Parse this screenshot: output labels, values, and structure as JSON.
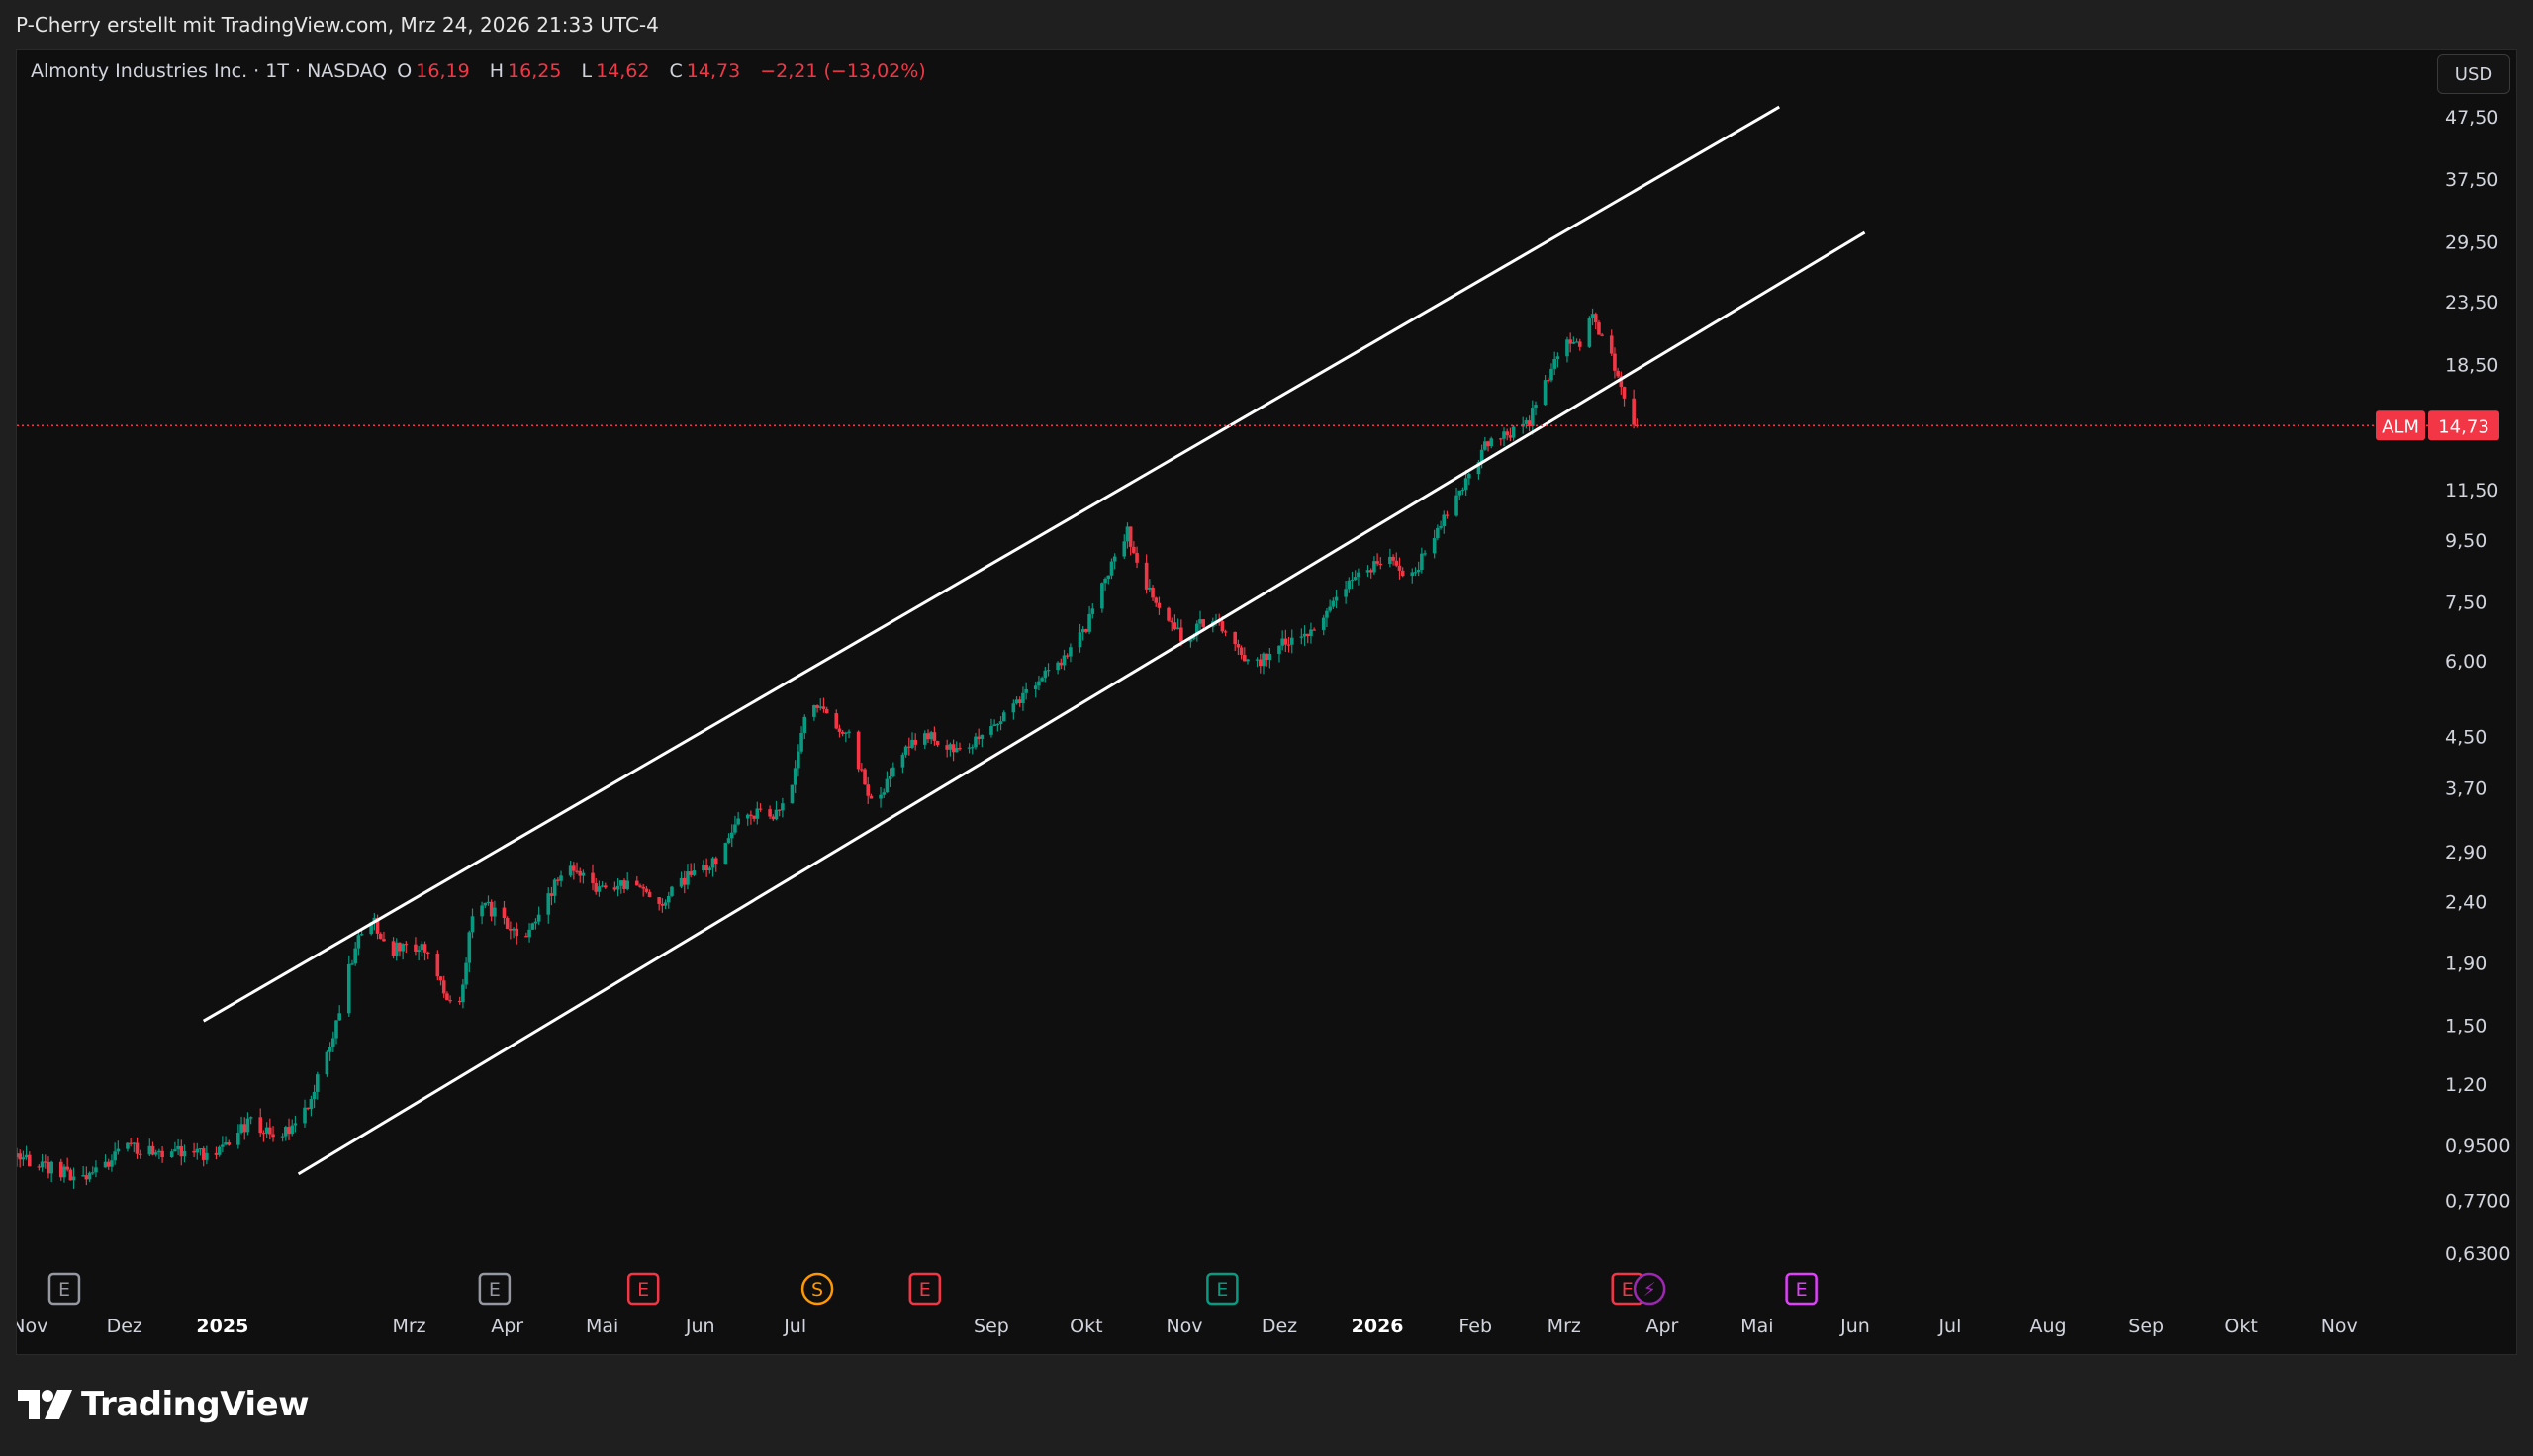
{
  "header": {
    "caption": "P-Cherry erstellt mit TradingView.com, Mrz 24, 2026 21:33 UTC-4"
  },
  "legend": {
    "symbol_name": "Almonty Industries Inc. · 1T · NASDAQ",
    "open_label": "O",
    "open": "16,19",
    "high_label": "H",
    "high": "16,25",
    "low_label": "L",
    "low": "14,62",
    "close_label": "C",
    "close": "14,73",
    "change": "−2,21 (−13,02%)"
  },
  "currency_button": "USD",
  "price_tag": {
    "ticker": "ALM",
    "price": "14,73"
  },
  "footer": {
    "brand": "TradingView"
  },
  "colors": {
    "up": "#089981",
    "down": "#f23645",
    "channel": "#ffffff",
    "background": "#0f0f0f"
  },
  "chart_data": {
    "type": "candlestick",
    "y_scale": "log",
    "ylim": [
      0.6,
      52
    ],
    "y_ticks": [
      "47,50",
      "37,50",
      "29,50",
      "23,50",
      "18,50",
      "11,50",
      "9,50",
      "7,50",
      "6,00",
      "4,50",
      "3,70",
      "2,90",
      "2,40",
      "1,90",
      "1,50",
      "1,20",
      "0,9500",
      "0,7700",
      "0,6300"
    ],
    "y_tick_values": [
      47.5,
      37.5,
      29.5,
      23.5,
      18.5,
      11.5,
      9.5,
      7.5,
      6.0,
      4.5,
      3.7,
      2.9,
      2.4,
      1.9,
      1.5,
      1.2,
      0.95,
      0.77,
      0.63
    ],
    "x_start": "2024-10-28",
    "x_end": "2026-11-30",
    "x_ticks": [
      {
        "date": "2024-11-01",
        "label": "Nov",
        "bold": false
      },
      {
        "date": "2024-12-01",
        "label": "Dez",
        "bold": false
      },
      {
        "date": "2025-01-01",
        "label": "2025",
        "bold": true
      },
      {
        "date": "2025-03-01",
        "label": "Mrz",
        "bold": false
      },
      {
        "date": "2025-04-01",
        "label": "Apr",
        "bold": false
      },
      {
        "date": "2025-05-01",
        "label": "Mai",
        "bold": false
      },
      {
        "date": "2025-06-01",
        "label": "Jun",
        "bold": false
      },
      {
        "date": "2025-07-01",
        "label": "Jul",
        "bold": false
      },
      {
        "date": "2025-09-01",
        "label": "Sep",
        "bold": false
      },
      {
        "date": "2025-10-01",
        "label": "Okt",
        "bold": false
      },
      {
        "date": "2025-11-01",
        "label": "Nov",
        "bold": false
      },
      {
        "date": "2025-12-01",
        "label": "Dez",
        "bold": false
      },
      {
        "date": "2026-01-01",
        "label": "2026",
        "bold": true
      },
      {
        "date": "2026-02-01",
        "label": "Feb",
        "bold": false
      },
      {
        "date": "2026-03-01",
        "label": "Mrz",
        "bold": false
      },
      {
        "date": "2026-04-01",
        "label": "Apr",
        "bold": false
      },
      {
        "date": "2026-05-01",
        "label": "Mai",
        "bold": false
      },
      {
        "date": "2026-06-01",
        "label": "Jun",
        "bold": false
      },
      {
        "date": "2026-07-01",
        "label": "Jul",
        "bold": false
      },
      {
        "date": "2026-08-01",
        "label": "Aug",
        "bold": false
      },
      {
        "date": "2026-09-01",
        "label": "Sep",
        "bold": false
      },
      {
        "date": "2026-10-01",
        "label": "Okt",
        "bold": false
      },
      {
        "date": "2026-11-01",
        "label": "Nov",
        "bold": false
      }
    ],
    "price_path": [
      [
        "2024-10-28",
        0.91
      ],
      [
        "2024-11-12",
        0.86
      ],
      [
        "2024-11-20",
        0.84
      ],
      [
        "2024-12-01",
        0.95
      ],
      [
        "2024-12-15",
        0.93
      ],
      [
        "2024-12-28",
        0.92
      ],
      [
        "2025-01-10",
        1.05
      ],
      [
        "2025-01-18",
        0.97
      ],
      [
        "2025-01-28",
        1.1
      ],
      [
        "2025-02-05",
        1.45
      ],
      [
        "2025-02-12",
        2.05
      ],
      [
        "2025-02-18",
        2.22
      ],
      [
        "2025-02-24",
        2.0
      ],
      [
        "2025-03-01",
        2.08
      ],
      [
        "2025-03-08",
        1.95
      ],
      [
        "2025-03-13",
        1.62
      ],
      [
        "2025-03-17",
        1.65
      ],
      [
        "2025-03-22",
        2.5
      ],
      [
        "2025-03-28",
        2.3
      ],
      [
        "2025-04-06",
        2.05
      ],
      [
        "2025-04-12",
        2.35
      ],
      [
        "2025-04-20",
        2.8
      ],
      [
        "2025-04-28",
        2.55
      ],
      [
        "2025-05-10",
        2.55
      ],
      [
        "2025-05-20",
        2.4
      ],
      [
        "2025-05-28",
        2.65
      ],
      [
        "2025-06-05",
        2.8
      ],
      [
        "2025-06-15",
        3.4
      ],
      [
        "2025-06-25",
        3.35
      ],
      [
        "2025-06-30",
        3.75
      ],
      [
        "2025-07-05",
        5.2
      ],
      [
        "2025-07-10",
        5.0
      ],
      [
        "2025-07-18",
        4.5
      ],
      [
        "2025-07-22",
        3.9
      ],
      [
        "2025-07-26",
        3.4
      ],
      [
        "2025-08-01",
        4.0
      ],
      [
        "2025-08-10",
        4.6
      ],
      [
        "2025-08-20",
        4.3
      ],
      [
        "2025-09-01",
        4.6
      ],
      [
        "2025-09-10",
        5.2
      ],
      [
        "2025-09-20",
        5.8
      ],
      [
        "2025-10-01",
        6.8
      ],
      [
        "2025-10-08",
        8.5
      ],
      [
        "2025-10-14",
        9.9
      ],
      [
        "2025-10-18",
        8.4
      ],
      [
        "2025-10-24",
        7.2
      ],
      [
        "2025-11-01",
        6.5
      ],
      [
        "2025-11-08",
        7.1
      ],
      [
        "2025-11-15",
        6.7
      ],
      [
        "2025-11-22",
        5.8
      ],
      [
        "2025-12-01",
        6.4
      ],
      [
        "2025-12-10",
        6.6
      ],
      [
        "2025-12-18",
        7.6
      ],
      [
        "2025-12-26",
        8.5
      ],
      [
        "2026-01-05",
        8.8
      ],
      [
        "2026-01-12",
        8.3
      ],
      [
        "2026-01-20",
        9.8
      ],
      [
        "2026-01-28",
        11.8
      ],
      [
        "2026-02-05",
        13.8
      ],
      [
        "2026-02-12",
        14.2
      ],
      [
        "2026-02-18",
        15.0
      ],
      [
        "2026-02-25",
        18.5
      ],
      [
        "2026-03-02",
        20.5
      ],
      [
        "2026-03-06",
        19.8
      ],
      [
        "2026-03-10",
        22.3
      ],
      [
        "2026-03-16",
        19.0
      ],
      [
        "2026-03-20",
        16.4
      ],
      [
        "2026-03-24",
        14.73
      ]
    ],
    "last_price": 14.73,
    "channel_lines": [
      {
        "start": [
          "2024-12-26",
          1.53
        ],
        "end": [
          "2026-05-08",
          49.5
        ]
      },
      {
        "start": [
          "2025-01-25",
          0.855
        ],
        "end": [
          "2026-06-04",
          30.7
        ]
      }
    ],
    "event_markers": [
      {
        "date": "2024-11-12",
        "label": "E",
        "color": "#9598a1"
      },
      {
        "date": "2025-03-28",
        "label": "E",
        "color": "#9598a1"
      },
      {
        "date": "2025-05-14",
        "label": "E",
        "color": "#f23645"
      },
      {
        "date": "2025-07-08",
        "label": "S",
        "color": "#ff9800",
        "shape": "circle"
      },
      {
        "date": "2025-08-11",
        "label": "E",
        "color": "#f23645"
      },
      {
        "date": "2025-11-13",
        "label": "E",
        "color": "#089981"
      },
      {
        "date": "2026-03-21",
        "label": "E",
        "color": "#f23645"
      },
      {
        "date": "2026-03-28",
        "label": "⚡",
        "color": "#9c27b0",
        "shape": "circle"
      },
      {
        "date": "2026-05-15",
        "label": "E",
        "color": "#e040fb"
      }
    ]
  }
}
